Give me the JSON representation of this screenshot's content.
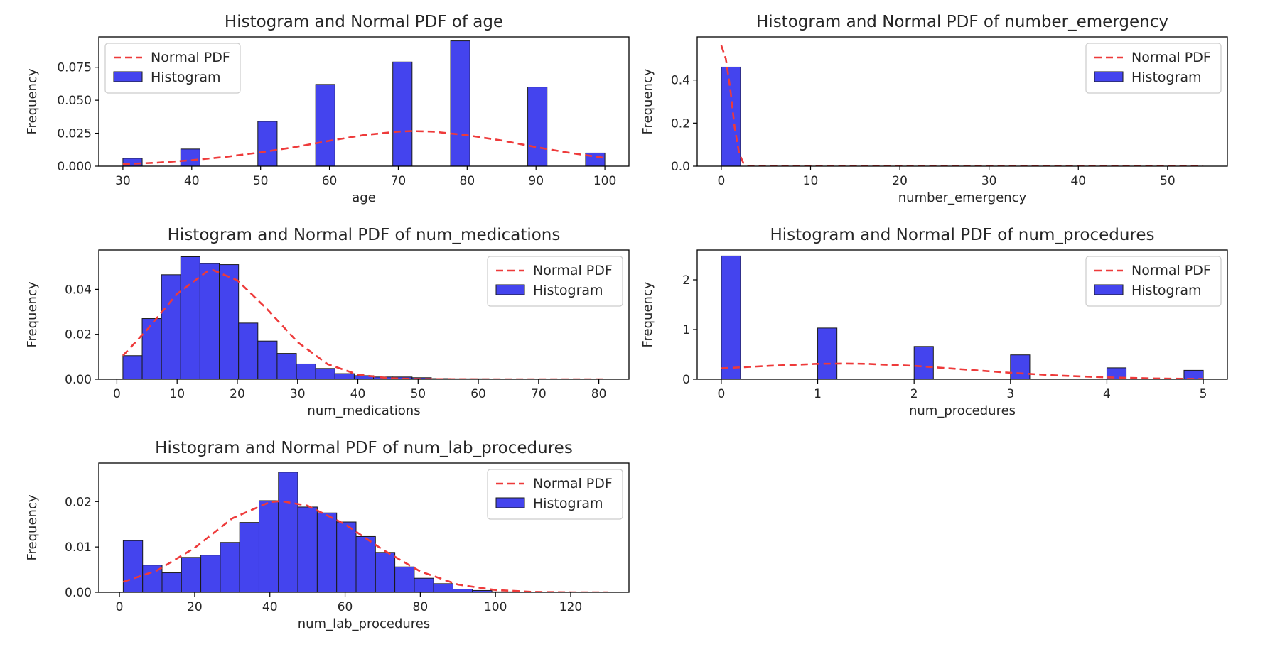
{
  "chart_data": [
    {
      "type": "bar",
      "title": "Histogram and Normal PDF of age",
      "xlabel": "age",
      "ylabel": "Frequency",
      "xlim": [
        26.5,
        103.5
      ],
      "ylim": [
        0,
        0.098
      ],
      "xticks": [
        30,
        40,
        50,
        60,
        70,
        80,
        90,
        100
      ],
      "yticks": [
        0.0,
        0.025,
        0.05,
        0.075
      ],
      "ytick_labels": [
        "0.000",
        "0.025",
        "0.050",
        "0.075"
      ],
      "legend": {
        "placement": "upper-left",
        "entries": [
          "Normal PDF",
          "Histogram"
        ]
      },
      "histogram": {
        "bin_edges": [
          30,
          32.8,
          35.6,
          38.4,
          41.2,
          44,
          46.8,
          49.6,
          52.4,
          55.2,
          58,
          60.8,
          63.6,
          66.4,
          69.2,
          72,
          74.8,
          77.6,
          80.4,
          83.2,
          86,
          88.8,
          91.6,
          94.4,
          97.2,
          100
        ],
        "values": [
          0.006,
          0,
          0,
          0.013,
          0,
          0,
          0,
          0.034,
          0,
          0,
          0.062,
          0,
          0,
          0,
          0.079,
          0,
          0,
          0.095,
          0,
          0,
          0,
          0.06,
          0,
          0,
          0.01
        ]
      },
      "pdf": {
        "x": [
          30,
          35,
          40,
          45,
          50,
          55,
          60,
          65,
          70,
          72,
          75,
          80,
          85,
          90,
          95,
          100
        ],
        "y": [
          0.0015,
          0.0027,
          0.0045,
          0.0071,
          0.0105,
          0.0145,
          0.0193,
          0.0236,
          0.0262,
          0.0266,
          0.0262,
          0.0235,
          0.0195,
          0.0145,
          0.01,
          0.0063
        ]
      },
      "colors": {
        "histogram": "#4444ee",
        "pdf": "#ee3a3a"
      }
    },
    {
      "type": "bar",
      "title": "Histogram and Normal PDF of number_emergency",
      "xlabel": "number_emergency",
      "ylabel": "Frequency",
      "xlim": [
        -2.7,
        56.7
      ],
      "ylim": [
        0,
        0.6
      ],
      "xticks": [
        0,
        10,
        20,
        30,
        40,
        50
      ],
      "yticks": [
        0.0,
        0.2,
        0.4
      ],
      "ytick_labels": [
        "0.0",
        "0.2",
        "0.4"
      ],
      "legend": {
        "placement": "upper-right",
        "entries": [
          "Normal PDF",
          "Histogram"
        ]
      },
      "histogram": {
        "bin_edges": [
          0,
          2.16,
          4.32,
          6.48,
          8.64,
          10.8,
          12.96,
          15.12,
          17.28,
          19.44,
          21.6,
          23.76,
          25.92,
          28.08,
          30.24,
          32.4,
          34.56,
          36.72,
          38.88,
          41.04,
          43.2,
          45.36,
          47.52,
          49.68,
          51.84,
          54
        ],
        "values": [
          0.46,
          0,
          0,
          0,
          0,
          0,
          0,
          0,
          0,
          0,
          0,
          0,
          0,
          0,
          0,
          0,
          0,
          0,
          0,
          0,
          0,
          0,
          0,
          0,
          0
        ]
      },
      "pdf": {
        "x": [
          0,
          0.5,
          1,
          1.5,
          2,
          2.5,
          3,
          5,
          10,
          20,
          30,
          40,
          54
        ],
        "y": [
          0.56,
          0.5,
          0.36,
          0.18,
          0.06,
          0.012,
          0.002,
          0,
          0,
          0,
          0,
          0,
          0
        ]
      },
      "colors": {
        "histogram": "#4444ee",
        "pdf": "#ee3a3a"
      }
    },
    {
      "type": "bar",
      "title": "Histogram and Normal PDF of num_medications",
      "xlabel": "num_medications",
      "ylabel": "Frequency",
      "xlim": [
        -3,
        85
      ],
      "ylim": [
        0,
        0.0575
      ],
      "xticks": [
        0,
        10,
        20,
        30,
        40,
        50,
        60,
        70,
        80
      ],
      "yticks": [
        0.0,
        0.02,
        0.04
      ],
      "ytick_labels": [
        "0.00",
        "0.02",
        "0.04"
      ],
      "legend": {
        "placement": "upper-right",
        "entries": [
          "Normal PDF",
          "Histogram"
        ]
      },
      "histogram": {
        "bin_edges": [
          1,
          4.2,
          7.4,
          10.6,
          13.8,
          17,
          20.2,
          23.4,
          26.6,
          29.8,
          33,
          36.2,
          39.4,
          42.6,
          45.8,
          49,
          52.2,
          55.4,
          58.6,
          61.8,
          65,
          68.2,
          71.4,
          74.6,
          77.8,
          81
        ],
        "values": [
          0.0105,
          0.027,
          0.0465,
          0.0545,
          0.0515,
          0.051,
          0.025,
          0.017,
          0.0115,
          0.0068,
          0.0048,
          0.0025,
          0.0016,
          0.001,
          0.001,
          0.0007,
          0.0003,
          0.0002,
          0.0002,
          0.0001,
          0.0001,
          0.0001,
          0,
          0,
          0
        ]
      },
      "pdf": {
        "x": [
          1,
          5,
          10,
          15,
          16,
          20,
          25,
          30,
          35,
          40,
          45,
          50,
          60,
          70,
          81
        ],
        "y": [
          0.0105,
          0.022,
          0.038,
          0.048,
          0.0485,
          0.044,
          0.031,
          0.0165,
          0.0067,
          0.0021,
          0.0005,
          0.0001,
          0,
          0,
          0
        ]
      },
      "colors": {
        "histogram": "#4444ee",
        "pdf": "#ee3a3a"
      }
    },
    {
      "type": "bar",
      "title": "Histogram and Normal PDF of num_procedures",
      "xlabel": "num_procedures",
      "ylabel": "Frequency",
      "xlim": [
        -0.25,
        5.25
      ],
      "ylim": [
        0,
        2.6
      ],
      "xticks": [
        0,
        1,
        2,
        3,
        4,
        5
      ],
      "yticks": [
        0,
        1,
        2
      ],
      "ytick_labels": [
        "0",
        "1",
        "2"
      ],
      "legend": {
        "placement": "upper-right",
        "entries": [
          "Normal PDF",
          "Histogram"
        ]
      },
      "histogram": {
        "bin_edges": [
          0,
          0.2,
          0.4,
          0.6,
          0.8,
          1.0,
          1.2,
          1.4,
          1.6,
          1.8,
          2.0,
          2.2,
          2.4,
          2.6,
          2.8,
          3.0,
          3.2,
          3.4,
          3.6,
          3.8,
          4.0,
          4.2,
          4.4,
          4.6,
          4.8,
          5.0
        ],
        "values": [
          2.48,
          0,
          0,
          0,
          0,
          1.03,
          0,
          0,
          0,
          0,
          0.66,
          0,
          0,
          0,
          0,
          0.49,
          0,
          0,
          0,
          0,
          0.23,
          0,
          0,
          0,
          0.18
        ]
      },
      "pdf": {
        "x": [
          0,
          0.5,
          1,
          1.3,
          1.5,
          2,
          2.5,
          3,
          3.5,
          4,
          4.5,
          5
        ],
        "y": [
          0.22,
          0.27,
          0.31,
          0.315,
          0.31,
          0.27,
          0.2,
          0.13,
          0.075,
          0.038,
          0.016,
          0.006
        ]
      },
      "colors": {
        "histogram": "#4444ee",
        "pdf": "#ee3a3a"
      }
    },
    {
      "type": "bar",
      "title": "Histogram and Normal PDF of num_lab_procedures",
      "xlabel": "num_lab_procedures",
      "ylabel": "Frequency",
      "xlim": [
        -5.5,
        135.5
      ],
      "ylim": [
        0,
        0.0285
      ],
      "xticks": [
        0,
        20,
        40,
        60,
        80,
        100,
        120
      ],
      "yticks": [
        0.0,
        0.01,
        0.02
      ],
      "ytick_labels": [
        "0.00",
        "0.01",
        "0.02"
      ],
      "legend": {
        "placement": "upper-right",
        "entries": [
          "Normal PDF",
          "Histogram"
        ]
      },
      "histogram": {
        "bin_edges": [
          1,
          6.16,
          11.32,
          16.48,
          21.64,
          26.8,
          31.96,
          37.12,
          42.28,
          47.44,
          52.6,
          57.76,
          62.92,
          68.08,
          73.24,
          78.4,
          83.56,
          88.72,
          93.88,
          99.04,
          104.2,
          109.36,
          114.52,
          119.68,
          124.84,
          130
        ],
        "values": [
          0.0114,
          0.006,
          0.0043,
          0.0077,
          0.0082,
          0.011,
          0.0154,
          0.0202,
          0.0265,
          0.0188,
          0.0175,
          0.0155,
          0.0123,
          0.0088,
          0.0056,
          0.0031,
          0.0019,
          0.0007,
          0.0004,
          0.0001,
          0,
          0,
          0,
          0,
          0
        ]
      },
      "pdf": {
        "x": [
          1,
          10,
          20,
          30,
          40,
          43,
          50,
          60,
          70,
          80,
          90,
          100,
          110,
          120,
          130
        ],
        "y": [
          0.0023,
          0.0048,
          0.0098,
          0.0163,
          0.0199,
          0.0201,
          0.0191,
          0.015,
          0.0094,
          0.0046,
          0.0017,
          0.0005,
          0.0001,
          0,
          0
        ]
      },
      "colors": {
        "histogram": "#4444ee",
        "pdf": "#ee3a3a"
      }
    }
  ]
}
